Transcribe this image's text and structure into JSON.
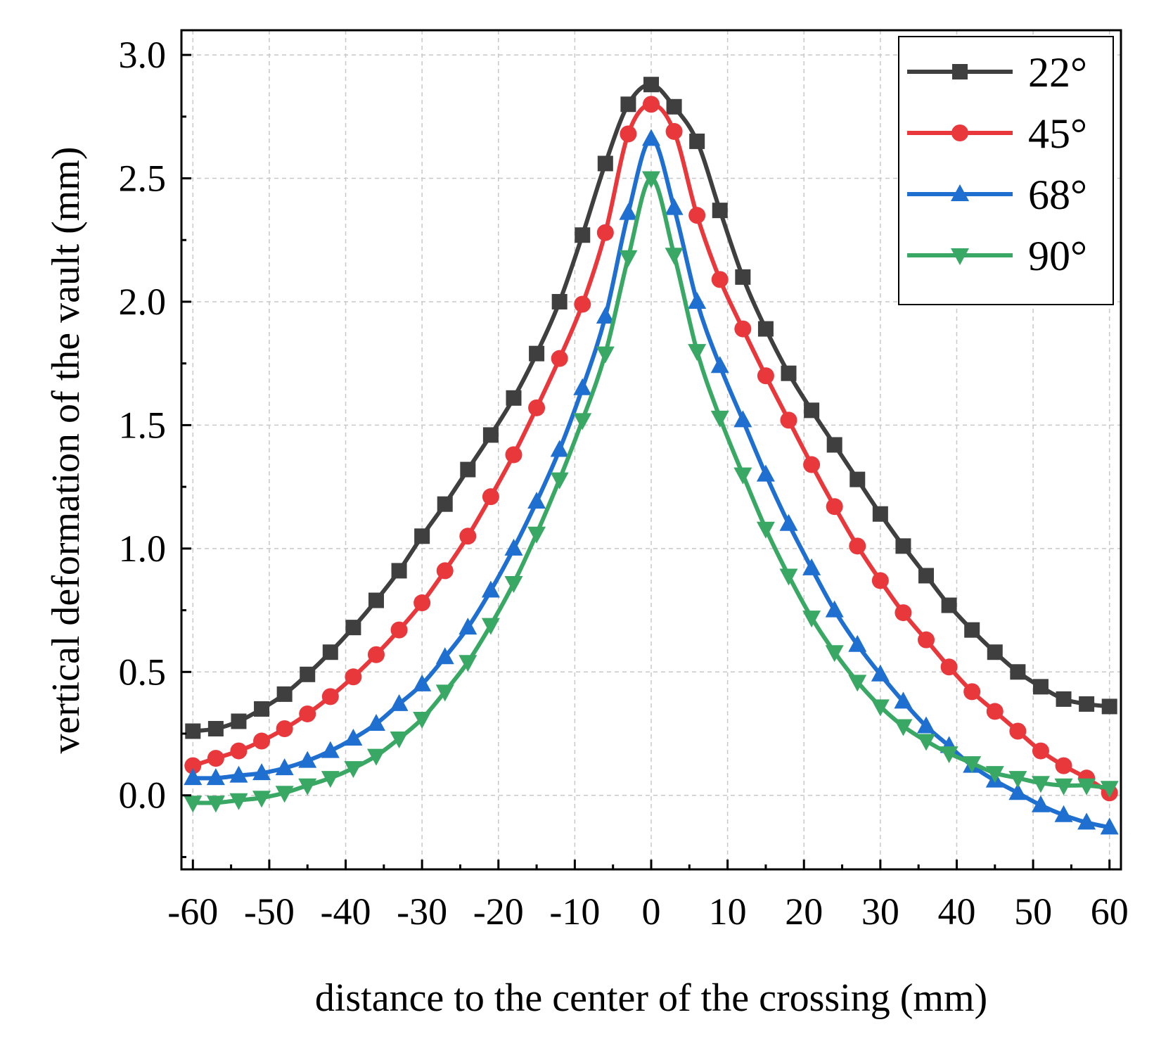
{
  "chart_data": {
    "type": "line",
    "title": "",
    "xlabel": "distance to the center of the crossing (mm)",
    "ylabel": "vertical deformation of the vault (mm)",
    "xlim": [
      -61.5,
      61.5
    ],
    "ylim": [
      -0.3,
      3.1
    ],
    "xticks": [
      -60,
      -50,
      -40,
      -30,
      -20,
      -10,
      0,
      10,
      20,
      30,
      40,
      50,
      60
    ],
    "xtick_labels": [
      "-60",
      "-50",
      "-40",
      "-30",
      "-20",
      "-10",
      "0",
      "10",
      "20",
      "30",
      "40",
      "50",
      "60"
    ],
    "yticks": [
      0.0,
      0.5,
      1.0,
      1.5,
      2.0,
      2.5,
      3.0
    ],
    "ytick_labels": [
      "0.0",
      "0.5",
      "1.0",
      "1.5",
      "2.0",
      "2.5",
      "3.0"
    ],
    "grid": true,
    "legend_position": "top-right",
    "x": [
      -60,
      -57,
      -54,
      -51,
      -48,
      -45,
      -42,
      -39,
      -36,
      -33,
      -30,
      -27,
      -24,
      -21,
      -18,
      -15,
      -12,
      -9,
      -6,
      -3,
      0,
      3,
      6,
      9,
      12,
      15,
      18,
      21,
      24,
      27,
      30,
      33,
      36,
      39,
      42,
      45,
      48,
      51,
      54,
      57,
      60
    ],
    "series": [
      {
        "name": "22°",
        "color": "#3f3f3f",
        "marker": "square",
        "values": [
          0.26,
          0.27,
          0.3,
          0.35,
          0.41,
          0.49,
          0.58,
          0.68,
          0.79,
          0.91,
          1.05,
          1.18,
          1.32,
          1.46,
          1.61,
          1.79,
          2.0,
          2.27,
          2.56,
          2.8,
          2.88,
          2.79,
          2.65,
          2.37,
          2.1,
          1.89,
          1.71,
          1.56,
          1.42,
          1.28,
          1.14,
          1.01,
          0.89,
          0.77,
          0.67,
          0.58,
          0.5,
          0.44,
          0.39,
          0.37,
          0.36
        ]
      },
      {
        "name": "45°",
        "color": "#e8383c",
        "marker": "circle",
        "values": [
          0.12,
          0.15,
          0.18,
          0.22,
          0.27,
          0.33,
          0.4,
          0.48,
          0.57,
          0.67,
          0.78,
          0.91,
          1.05,
          1.21,
          1.38,
          1.57,
          1.77,
          1.99,
          2.28,
          2.68,
          2.8,
          2.69,
          2.35,
          2.09,
          1.89,
          1.7,
          1.52,
          1.34,
          1.17,
          1.01,
          0.87,
          0.74,
          0.63,
          0.52,
          0.42,
          0.34,
          0.26,
          0.18,
          0.12,
          0.07,
          0.01
        ]
      },
      {
        "name": "68°",
        "color": "#1f6fd1",
        "marker": "triangle-up",
        "values": [
          0.07,
          0.07,
          0.08,
          0.09,
          0.11,
          0.14,
          0.18,
          0.23,
          0.29,
          0.37,
          0.45,
          0.56,
          0.68,
          0.83,
          1.0,
          1.19,
          1.4,
          1.65,
          1.94,
          2.36,
          2.66,
          2.38,
          2.0,
          1.74,
          1.52,
          1.3,
          1.1,
          0.92,
          0.75,
          0.61,
          0.49,
          0.38,
          0.28,
          0.2,
          0.12,
          0.06,
          0.01,
          -0.04,
          -0.08,
          -0.11,
          -0.13
        ]
      },
      {
        "name": "90°",
        "color": "#3aa865",
        "marker": "triangle-down",
        "values": [
          -0.03,
          -0.03,
          -0.02,
          -0.01,
          0.01,
          0.04,
          0.07,
          0.11,
          0.16,
          0.23,
          0.31,
          0.42,
          0.54,
          0.69,
          0.86,
          1.06,
          1.28,
          1.52,
          1.79,
          2.18,
          2.5,
          2.19,
          1.8,
          1.53,
          1.3,
          1.08,
          0.89,
          0.72,
          0.58,
          0.46,
          0.36,
          0.28,
          0.22,
          0.17,
          0.13,
          0.09,
          0.07,
          0.05,
          0.04,
          0.04,
          0.03
        ]
      }
    ]
  }
}
